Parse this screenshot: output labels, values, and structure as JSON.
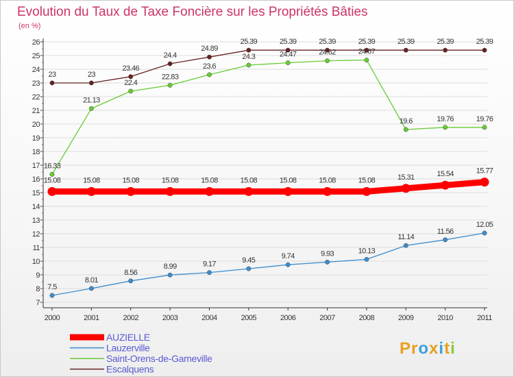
{
  "chart_data": {
    "type": "line",
    "title": "Evolution du Taux de Taxe Foncière sur les Propriétés Bâties",
    "ylabel": "(en %)",
    "xlabel": "",
    "ylim": [
      7,
      26
    ],
    "yticks": [
      7,
      8,
      9,
      10,
      11,
      12,
      13,
      14,
      15,
      16,
      17,
      18,
      19,
      20,
      21,
      22,
      23,
      24,
      25,
      26
    ],
    "categories": [
      "2000",
      "2001",
      "2002",
      "2003",
      "2004",
      "2005",
      "2006",
      "2007",
      "2008",
      "2009",
      "2010",
      "2011"
    ],
    "series": [
      {
        "name": "AUZIELLE",
        "color": "#ff0000",
        "values": [
          15.08,
          15.08,
          15.08,
          15.08,
          15.08,
          15.08,
          15.08,
          15.08,
          15.08,
          15.31,
          15.54,
          15.77
        ],
        "labels": [
          "15.08",
          "15.08",
          "15.08",
          "15.08",
          "15.08",
          "15.08",
          "15.08",
          "15.08",
          "15.08",
          "15.31",
          "15.54",
          "15.77"
        ]
      },
      {
        "name": "Lauzerville",
        "color": "#3d8ccc",
        "values": [
          7.5,
          8.01,
          8.56,
          8.99,
          9.17,
          9.45,
          9.74,
          9.93,
          10.13,
          11.14,
          11.56,
          12.05
        ],
        "labels": [
          "7.5",
          "8.01",
          "8.56",
          "8.99",
          "9.17",
          "9.45",
          "9.74",
          "9.93",
          "10.13",
          "11.14",
          "11.56",
          "12.05"
        ]
      },
      {
        "name": "Saint-Orens-de-Gameville",
        "color": "#66cc33",
        "values": [
          16.33,
          21.13,
          22.4,
          22.83,
          23.6,
          24.3,
          24.47,
          24.62,
          24.67,
          19.6,
          19.76,
          19.76
        ],
        "labels": [
          "16.33",
          "21.13",
          "22.4",
          "22.83",
          "23.6",
          "24.3",
          "24.47",
          "24.62",
          "24.67",
          "19.6",
          "19.76",
          "19.76"
        ]
      },
      {
        "name": "Escalquens",
        "color": "#662222",
        "values": [
          23,
          23,
          23.46,
          24.4,
          24.89,
          25.39,
          25.39,
          25.39,
          25.39,
          25.39,
          25.39,
          25.39
        ],
        "labels": [
          "23",
          "23",
          "23.46",
          "24.4",
          "24.89",
          "25.39",
          "25.39",
          "25.39",
          "25.39",
          "25.39",
          "25.39",
          "25.39"
        ]
      }
    ],
    "legend_position": "bottom-left"
  },
  "branding": {
    "logo_text": "Proxiti",
    "logo_letters": [
      "P",
      "r",
      "o",
      "x",
      "i",
      "t",
      "i"
    ],
    "logo_colors": [
      "#e8a020",
      "#e8a020",
      "#3aa0e0",
      "#e8a020",
      "#3aa0e0",
      "#e8a020",
      "#88cc33"
    ]
  },
  "style": {
    "axis_color": "#333333",
    "grid_color": "#dddddd",
    "minor_tick_color": "#e05050"
  }
}
